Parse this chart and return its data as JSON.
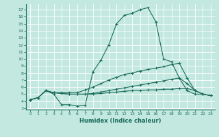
{
  "xlabel": "Humidex (Indice chaleur)",
  "background_color": "#c3e8e0",
  "grid_color": "#b0d8d0",
  "line_color": "#1a6b5a",
  "xlim": [
    -0.5,
    23.5
  ],
  "ylim": [
    2.8,
    17.8
  ],
  "yticks": [
    3,
    4,
    5,
    6,
    7,
    8,
    9,
    10,
    11,
    12,
    13,
    14,
    15,
    16,
    17
  ],
  "xticks": [
    0,
    1,
    2,
    3,
    4,
    5,
    6,
    7,
    8,
    9,
    10,
    11,
    12,
    13,
    14,
    15,
    16,
    17,
    18,
    19,
    20,
    21,
    22,
    23
  ],
  "curves": [
    [
      4.2,
      4.5,
      5.5,
      5.0,
      3.5,
      3.5,
      3.3,
      3.4,
      8.2,
      9.8,
      12.0,
      15.0,
      16.2,
      16.5,
      17.0,
      17.3,
      15.3,
      10.0,
      9.6,
      7.3,
      5.5,
      5.0,
      5.0,
      4.8
    ],
    [
      4.2,
      4.5,
      5.5,
      5.2,
      5.2,
      5.2,
      5.2,
      5.6,
      6.0,
      6.5,
      7.0,
      7.4,
      7.8,
      8.0,
      8.3,
      8.5,
      8.7,
      8.9,
      9.2,
      9.4,
      7.3,
      5.5,
      5.0,
      4.8
    ],
    [
      4.2,
      4.5,
      5.5,
      5.2,
      5.1,
      5.0,
      5.0,
      5.0,
      5.1,
      5.3,
      5.5,
      5.7,
      5.9,
      6.1,
      6.3,
      6.5,
      6.7,
      6.9,
      7.1,
      7.3,
      6.5,
      5.5,
      5.0,
      4.8
    ],
    [
      4.2,
      4.5,
      5.5,
      5.2,
      5.1,
      5.0,
      5.0,
      5.0,
      5.0,
      5.1,
      5.2,
      5.3,
      5.4,
      5.5,
      5.5,
      5.6,
      5.6,
      5.7,
      5.7,
      5.8,
      5.8,
      5.5,
      5.0,
      4.8
    ]
  ]
}
